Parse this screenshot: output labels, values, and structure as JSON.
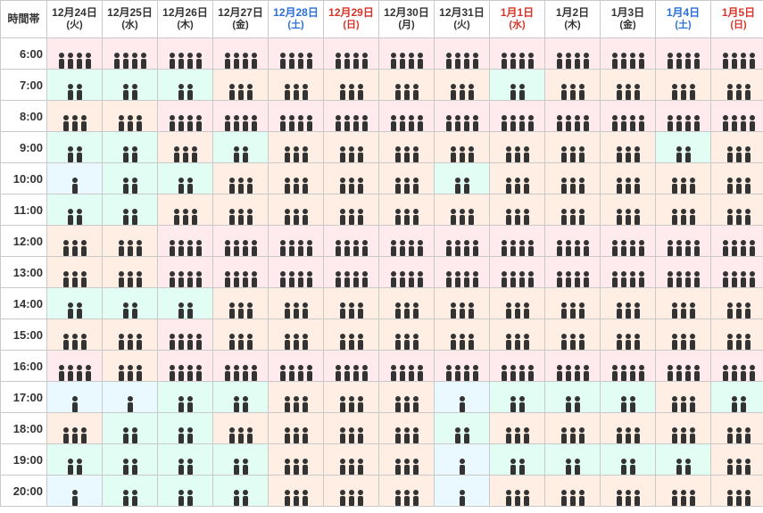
{
  "type": "heatmap-table",
  "timeHeader": "時間帯",
  "colors": {
    "level1": "#eaf8ff",
    "level2": "#e2fdf3",
    "level3": "#ffeee4",
    "level4": "#ffeaee",
    "text": "#333333",
    "sat": "#2a6fd7",
    "sun": "#d7342a",
    "grid": "#c9c9c9"
  },
  "days": [
    {
      "label": "12月24日",
      "dow": "(火)",
      "dowClass": ""
    },
    {
      "label": "12月25日",
      "dow": "(水)",
      "dowClass": ""
    },
    {
      "label": "12月26日",
      "dow": "(木)",
      "dowClass": ""
    },
    {
      "label": "12月27日",
      "dow": "(金)",
      "dowClass": ""
    },
    {
      "label": "12月28日",
      "dow": "(土)",
      "dowClass": "sat"
    },
    {
      "label": "12月29日",
      "dow": "(日)",
      "dowClass": "sun"
    },
    {
      "label": "12月30日",
      "dow": "(月)",
      "dowClass": ""
    },
    {
      "label": "12月31日",
      "dow": "(火)",
      "dowClass": ""
    },
    {
      "label": "1月1日",
      "dow": "(水)",
      "dowClass": "sun"
    },
    {
      "label": "1月2日",
      "dow": "(木)",
      "dowClass": ""
    },
    {
      "label": "1月3日",
      "dow": "(金)",
      "dowClass": ""
    },
    {
      "label": "1月4日",
      "dow": "(土)",
      "dowClass": "sat"
    },
    {
      "label": "1月5日",
      "dow": "(日)",
      "dowClass": "sun"
    }
  ],
  "times": [
    "6:00",
    "7:00",
    "8:00",
    "9:00",
    "10:00",
    "11:00",
    "12:00",
    "13:00",
    "14:00",
    "15:00",
    "16:00",
    "17:00",
    "18:00",
    "19:00",
    "20:00"
  ],
  "grid": [
    [
      4,
      4,
      4,
      4,
      4,
      4,
      4,
      4,
      4,
      4,
      4,
      4,
      4
    ],
    [
      2,
      2,
      2,
      3,
      3,
      3,
      3,
      3,
      2,
      3,
      3,
      3,
      3
    ],
    [
      3,
      3,
      4,
      4,
      4,
      4,
      4,
      4,
      4,
      4,
      4,
      4,
      4
    ],
    [
      2,
      2,
      3,
      2,
      3,
      3,
      3,
      3,
      3,
      3,
      3,
      2,
      3
    ],
    [
      1,
      2,
      2,
      3,
      3,
      3,
      3,
      2,
      3,
      3,
      3,
      3,
      3
    ],
    [
      2,
      2,
      3,
      3,
      3,
      3,
      3,
      3,
      3,
      3,
      3,
      3,
      3
    ],
    [
      3,
      3,
      4,
      4,
      4,
      4,
      4,
      4,
      4,
      4,
      4,
      4,
      4
    ],
    [
      3,
      3,
      4,
      4,
      4,
      4,
      4,
      4,
      4,
      4,
      4,
      4,
      4
    ],
    [
      2,
      2,
      2,
      3,
      3,
      3,
      3,
      3,
      3,
      3,
      3,
      3,
      3
    ],
    [
      3,
      3,
      4,
      3,
      3,
      3,
      3,
      3,
      3,
      3,
      3,
      3,
      3
    ],
    [
      4,
      3,
      4,
      4,
      4,
      4,
      4,
      4,
      4,
      4,
      4,
      4,
      4
    ],
    [
      1,
      1,
      2,
      2,
      3,
      3,
      3,
      1,
      2,
      2,
      2,
      3,
      2
    ],
    [
      3,
      2,
      2,
      3,
      3,
      3,
      3,
      2,
      3,
      3,
      3,
      3,
      3
    ],
    [
      2,
      2,
      2,
      2,
      3,
      3,
      3,
      1,
      2,
      2,
      2,
      2,
      3
    ],
    [
      1,
      2,
      2,
      2,
      3,
      3,
      3,
      1,
      3,
      3,
      3,
      3,
      3
    ]
  ]
}
